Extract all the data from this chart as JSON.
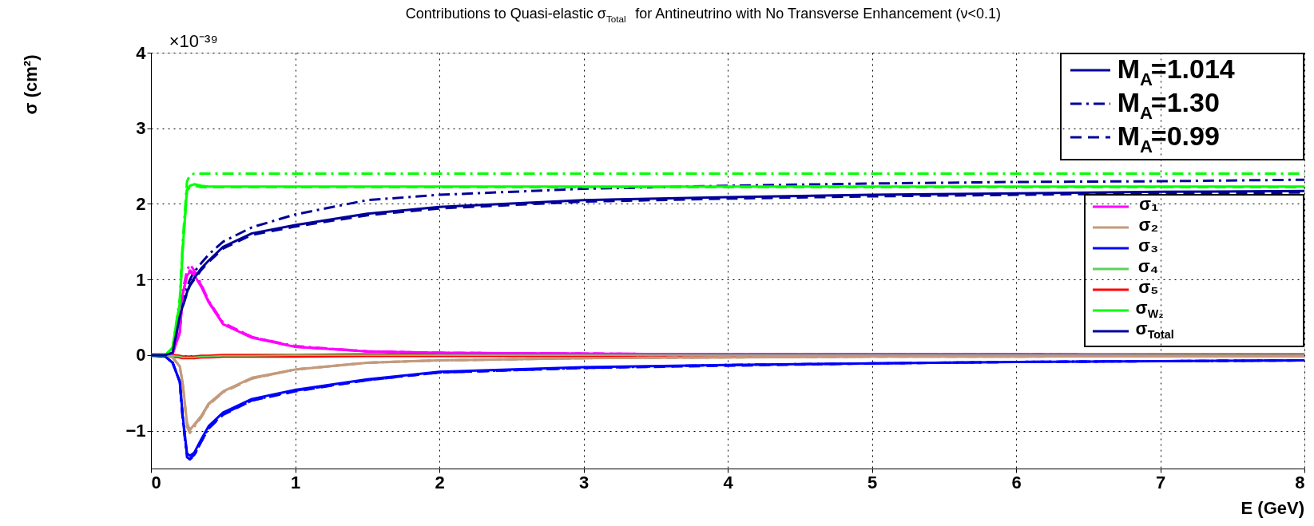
{
  "chart_data": {
    "type": "line",
    "title": "Contributions to Quasi-elastic σ$_{Total}$ for Antineutrino with No Transverse Enhancement (ν<0.1)",
    "xlabel": "E (GeV)",
    "ylabel": "σ (cm²)",
    "annotations": [
      "×10⁻³⁹",
      "M$_{A}$=1.014"
    ],
    "x": [
      0,
      0.1,
      0.15,
      0.2,
      0.22,
      0.25,
      0.27,
      0.3,
      0.35,
      0.4,
      0.5,
      0.7,
      1,
      1.5,
      2,
      3,
      4,
      5,
      6,
      7,
      8
    ],
    "xlim": [
      0,
      8
    ],
    "xticks": [
      0,
      1,
      2,
      3,
      4,
      5,
      6,
      7,
      8
    ],
    "ylim": [
      -1.5,
      4
    ],
    "yticks": [
      -1,
      0,
      1,
      2,
      3,
      4
    ],
    "grid": true,
    "legend": "right",
    "marker": "none",
    "series": [
      {
        "color": "#ff00ff",
        "line_style": "dashdot",
        "values": [
          0,
          0,
          0.02,
          0.3,
          0.85,
          1.12,
          1.2,
          1.12,
          0.93,
          0.72,
          0.43,
          0.24,
          0.12,
          0.05,
          0.03,
          0.02,
          0.01,
          0.01,
          0.01,
          0,
          0
        ]
      },
      {
        "color": "#c49a7c",
        "line_style": "dashdot",
        "values": [
          0,
          0,
          -0.03,
          -0.15,
          -0.4,
          -0.95,
          -1.03,
          -0.95,
          -0.82,
          -0.66,
          -0.49,
          -0.31,
          -0.19,
          -0.1,
          -0.07,
          -0.04,
          -0.03,
          -0.02,
          -0.02,
          -0.01,
          -0.01
        ]
      },
      {
        "color": "#0000ff",
        "line_style": "dashdot",
        "values": [
          0,
          -0.02,
          -0.1,
          -0.35,
          -0.85,
          -1.35,
          -1.38,
          -1.33,
          -1.14,
          -0.96,
          -0.78,
          -0.6,
          -0.47,
          -0.33,
          -0.23,
          -0.17,
          -0.13,
          -0.11,
          -0.09,
          -0.08,
          -0.07
        ]
      },
      {
        "color": "#00ff00",
        "line_style": "dashdot",
        "values": [
          0,
          0,
          0.1,
          0.75,
          1.5,
          2.3,
          2.38,
          2.4,
          2.4,
          2.4,
          2.4,
          2.4,
          2.4,
          2.4,
          2.4,
          2.4,
          2.4,
          2.4,
          2.4,
          2.4,
          2.4
        ]
      },
      {
        "name": "M$_{A}$=1.30",
        "color": "#000099",
        "line_style": "dashdot",
        "values": [
          0,
          0,
          0.03,
          0.55,
          0.7,
          0.9,
          1.0,
          1.1,
          1.22,
          1.33,
          1.5,
          1.69,
          1.86,
          2.05,
          2.12,
          2.2,
          2.24,
          2.27,
          2.29,
          2.3,
          2.32
        ]
      },
      {
        "color": "#ff00ff",
        "line_style": "dashed",
        "values": [
          0,
          0,
          0.02,
          0.3,
          0.8,
          1.06,
          1.12,
          1.08,
          0.92,
          0.71,
          0.42,
          0.24,
          0.11,
          0.05,
          0.03,
          0.02,
          0.01,
          0.01,
          0.01,
          0,
          0
        ]
      },
      {
        "color": "#c49a7c",
        "line_style": "dashed",
        "values": [
          0,
          0,
          -0.03,
          -0.15,
          -0.38,
          -0.91,
          -1.0,
          -0.93,
          -0.81,
          -0.65,
          -0.49,
          -0.31,
          -0.19,
          -0.1,
          -0.07,
          -0.04,
          -0.03,
          -0.02,
          -0.02,
          -0.01,
          -0.01
        ]
      },
      {
        "color": "#0000ff",
        "line_style": "dashed",
        "values": [
          0,
          -0.02,
          -0.1,
          -0.36,
          -0.82,
          -1.33,
          -1.37,
          -1.32,
          -1.14,
          -0.97,
          -0.79,
          -0.6,
          -0.48,
          -0.33,
          -0.23,
          -0.17,
          -0.14,
          -0.11,
          -0.09,
          -0.08,
          -0.07
        ]
      },
      {
        "color": "#00ff00",
        "line_style": "dashed",
        "values": [
          0,
          0,
          0.1,
          0.69,
          1.4,
          2.18,
          2.22,
          2.24,
          2.22,
          2.22,
          2.22,
          2.22,
          2.22,
          2.22,
          2.22,
          2.22,
          2.22,
          2.22,
          2.22,
          2.22,
          2.22
        ]
      },
      {
        "name": "M$_{A}$=0.99",
        "color": "#000099",
        "line_style": "dashed",
        "values": [
          0,
          0,
          0.03,
          0.5,
          0.64,
          0.82,
          0.92,
          1.0,
          1.13,
          1.23,
          1.41,
          1.59,
          1.7,
          1.85,
          1.94,
          2.03,
          2.07,
          2.1,
          2.12,
          2.14,
          2.15
        ]
      },
      {
        "name": "σ₁",
        "color": "#ff00ff",
        "line_style": "solid",
        "values": [
          0,
          0,
          0.02,
          0.3,
          0.8,
          1.05,
          1.1,
          1.06,
          0.9,
          0.7,
          0.41,
          0.23,
          0.11,
          0.05,
          0.03,
          0.02,
          0.01,
          0.01,
          0.01,
          0,
          0
        ]
      },
      {
        "name": "σ₂",
        "color": "#c49a7c",
        "line_style": "solid",
        "values": [
          0,
          0,
          -0.03,
          -0.15,
          -0.37,
          -0.9,
          -0.99,
          -0.92,
          -0.8,
          -0.64,
          -0.48,
          -0.3,
          -0.19,
          -0.1,
          -0.07,
          -0.04,
          -0.03,
          -0.02,
          -0.02,
          -0.01,
          -0.01
        ]
      },
      {
        "name": "σ₃",
        "color": "#0000ff",
        "line_style": "solid",
        "values": [
          0,
          -0.02,
          -0.1,
          -0.35,
          -0.8,
          -1.3,
          -1.33,
          -1.29,
          -1.11,
          -0.94,
          -0.76,
          -0.58,
          -0.46,
          -0.32,
          -0.22,
          -0.16,
          -0.13,
          -0.11,
          -0.09,
          -0.08,
          -0.07
        ]
      },
      {
        "name": "σ₄",
        "color": "#5fcf5f",
        "line_style": "solid",
        "values": [
          0,
          0,
          -0.01,
          -0.02,
          -0.03,
          -0.03,
          -0.03,
          -0.03,
          -0.02,
          -0.02,
          -0.01,
          -0.01,
          0,
          0,
          0,
          0,
          0,
          0,
          0,
          0,
          0
        ]
      },
      {
        "name": "σ₅",
        "color": "#ff0000",
        "line_style": "solid",
        "values": [
          0,
          0,
          -0.01,
          -0.02,
          -0.03,
          -0.03,
          -0.03,
          -0.03,
          -0.02,
          -0.02,
          -0.01,
          -0.01,
          -0.01,
          0,
          0,
          0,
          0,
          0,
          0,
          0,
          0
        ]
      },
      {
        "name": "σ$_{W₂}$",
        "color": "#00ff00",
        "line_style": "solid",
        "values": [
          0,
          0,
          0.1,
          0.69,
          1.4,
          2.19,
          2.24,
          2.26,
          2.24,
          2.23,
          2.23,
          2.23,
          2.23,
          2.23,
          2.23,
          2.23,
          2.23,
          2.23,
          2.23,
          2.23,
          2.23
        ]
      },
      {
        "name": "σ$_{Total}$",
        "color": "#000099",
        "line_style": "solid",
        "values": [
          0,
          0,
          0.03,
          0.51,
          0.65,
          0.83,
          0.93,
          1.02,
          1.15,
          1.25,
          1.43,
          1.61,
          1.72,
          1.87,
          1.96,
          2.05,
          2.09,
          2.12,
          2.14,
          2.16,
          2.17
        ]
      }
    ]
  }
}
